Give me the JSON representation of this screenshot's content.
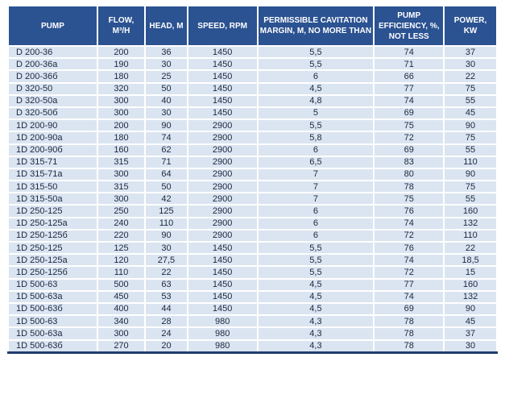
{
  "colors": {
    "header_bg": "#2b5291",
    "header_text": "#ffffff",
    "row_bg": "#dbe5f1",
    "body_text": "#1b2740",
    "grid": "#ffffff",
    "bottom_border": "#1f3c6e"
  },
  "chart_data": {
    "type": "table",
    "title": "",
    "columns": [
      "PUMP",
      "FLOW, M³/H",
      "HEAD, M",
      "SPEED, RPM",
      "PERMISSIBLE CAVITATION MARGIN, M, NO MORE THAN",
      "PUMP EFFICIENCY, %, NOT LESS",
      "POWER, KW"
    ],
    "rows": [
      [
        "D 200-36",
        "200",
        "36",
        "1450",
        "5,5",
        "74",
        "37"
      ],
      [
        "D 200-36a",
        "190",
        "30",
        "1450",
        "5,5",
        "71",
        "30"
      ],
      [
        "D 200-36б",
        "180",
        "25",
        "1450",
        "6",
        "66",
        "22"
      ],
      [
        "D 320-50",
        "320",
        "50",
        "1450",
        "4,5",
        "77",
        "75"
      ],
      [
        "D 320-50a",
        "300",
        "40",
        "1450",
        "4,8",
        "74",
        "55"
      ],
      [
        "D 320-50б",
        "300",
        "30",
        "1450",
        "5",
        "69",
        "45"
      ],
      [
        "1D 200-90",
        "200",
        "90",
        "2900",
        "5,5",
        "75",
        "90"
      ],
      [
        "1D 200-90a",
        "180",
        "74",
        "2900",
        "5,8",
        "72",
        "75"
      ],
      [
        "1D 200-90б",
        "160",
        "62",
        "2900",
        "6",
        "69",
        "55"
      ],
      [
        "1D 315-71",
        "315",
        "71",
        "2900",
        "6,5",
        "83",
        "110"
      ],
      [
        "1D 315-71a",
        "300",
        "64",
        "2900",
        "7",
        "80",
        "90"
      ],
      [
        "1D 315-50",
        "315",
        "50",
        "2900",
        "7",
        "78",
        "75"
      ],
      [
        "1D 315-50a",
        "300",
        "42",
        "2900",
        "7",
        "75",
        "55"
      ],
      [
        "1D 250-125",
        "250",
        "125",
        "2900",
        "6",
        "76",
        "160"
      ],
      [
        "1D 250-125a",
        "240",
        "110",
        "2900",
        "6",
        "74",
        "132"
      ],
      [
        "1D 250-125б",
        "220",
        "90",
        "2900",
        "6",
        "72",
        "110"
      ],
      [
        "1D 250-125",
        "125",
        "30",
        "1450",
        "5,5",
        "76",
        "22"
      ],
      [
        "1D 250-125a",
        "120",
        "27,5",
        "1450",
        "5,5",
        "74",
        "18,5"
      ],
      [
        "1D 250-125б",
        "110",
        "22",
        "1450",
        "5,5",
        "72",
        "15"
      ],
      [
        "1D 500-63",
        "500",
        "63",
        "1450",
        "4,5",
        "77",
        "160"
      ],
      [
        "1D 500-63a",
        "450",
        "53",
        "1450",
        "4,5",
        "74",
        "132"
      ],
      [
        "1D 500-63б",
        "400",
        "44",
        "1450",
        "4,5",
        "69",
        "90"
      ],
      [
        "1D 500-63",
        "340",
        "28",
        "980",
        "4,3",
        "78",
        "45"
      ],
      [
        "1D 500-63a",
        "300",
        "24",
        "980",
        "4,3",
        "78",
        "37"
      ],
      [
        "1D 500-63б",
        "270",
        "20",
        "980",
        "4,3",
        "78",
        "30"
      ]
    ]
  }
}
